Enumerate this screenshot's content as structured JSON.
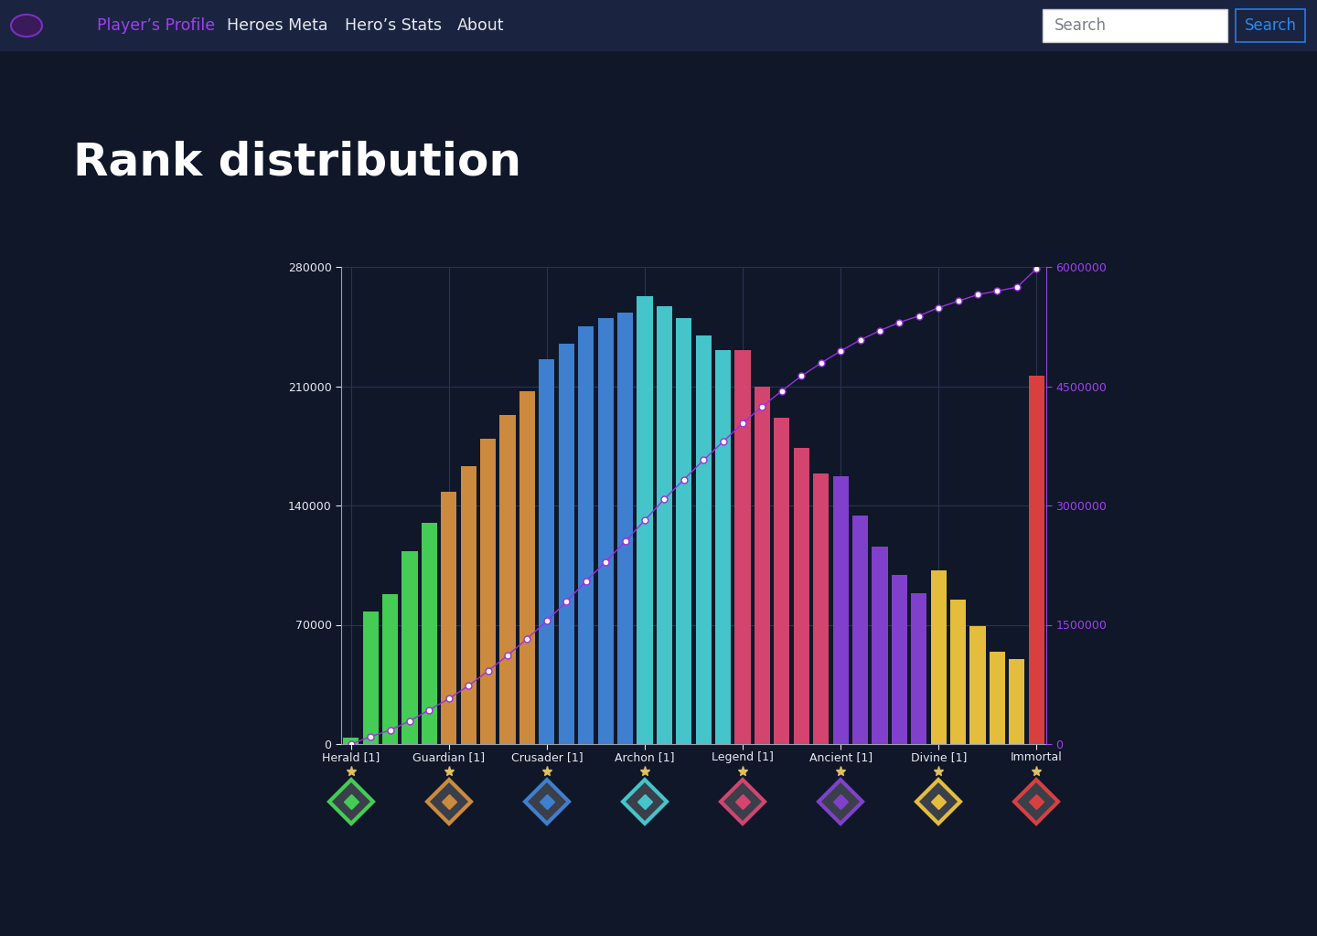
{
  "page": {
    "nav": [
      {
        "text": "Player’s Profile",
        "active": true
      },
      {
        "text": "Heroes Meta",
        "active": false
      },
      {
        "text": "Hero’s Stats",
        "active": false
      },
      {
        "text": "About",
        "active": false
      }
    ],
    "search": {
      "placeholder": "Search",
      "button": "Search"
    },
    "heading": "Rank distribution"
  },
  "chart_data": {
    "type": "bar",
    "categories": [
      "Herald [1]",
      null,
      null,
      null,
      null,
      "Guardian [1]",
      null,
      null,
      null,
      null,
      "Crusader [1]",
      null,
      null,
      null,
      null,
      "Archon [1]",
      null,
      null,
      null,
      null,
      "Legend [1]",
      null,
      null,
      null,
      null,
      "Ancient [1]",
      null,
      null,
      null,
      null,
      "Divine [1]",
      null,
      null,
      null,
      null,
      "Immortal"
    ],
    "series": [
      {
        "type": "bar",
        "values": [
          4000,
          78000,
          88000,
          113000,
          130000,
          148000,
          163000,
          179000,
          193000,
          207000,
          226000,
          235000,
          245000,
          250000,
          253000,
          263000,
          257000,
          250000,
          240000,
          231000,
          231000,
          210000,
          191500,
          174000,
          159000,
          157000,
          134000,
          116000,
          99000,
          88500,
          102000,
          85000,
          69000,
          54000,
          50000,
          216000
        ],
        "colors": [
          "#44cc55",
          "#44cc55",
          "#44cc55",
          "#44cc55",
          "#44cc55",
          "#cc8a3e",
          "#cc8a3e",
          "#cc8a3e",
          "#cc8a3e",
          "#cc8a3e",
          "#3f7fcf",
          "#3f7fcf",
          "#3f7fcf",
          "#3f7fcf",
          "#3f7fcf",
          "#45c4c9",
          "#45c4c9",
          "#45c4c9",
          "#45c4c9",
          "#45c4c9",
          "#d3446f",
          "#d3446f",
          "#d3446f",
          "#d3446f",
          "#d3446f",
          "#8040cc",
          "#8040cc",
          "#8040cc",
          "#8040cc",
          "#8040cc",
          "#e5bd3d",
          "#e5bd3d",
          "#e5bd3d",
          "#e5bd3d",
          "#e5bd3d",
          "#d84040"
        ]
      },
      {
        "type": "line",
        "axis": "y2",
        "color": "#9b30e0",
        "marker": "circle",
        "line_style": "solid",
        "values": [
          0,
          93000,
          174000,
          291000,
          430000,
          570000,
          733000,
          919000,
          1116000,
          1326000,
          1547000,
          1791000,
          2047000,
          2291000,
          2547000,
          2814000,
          3081000,
          3326000,
          3570000,
          3802000,
          4035000,
          4244000,
          4442000,
          4628000,
          4791000,
          4942000,
          5081000,
          5198000,
          5302000,
          5384000,
          5488000,
          5570000,
          5651000,
          5698000,
          5744000,
          5977000
        ]
      }
    ],
    "ylim": [
      0,
      280000
    ],
    "yticks": [
      0,
      70000,
      140000,
      210000,
      280000
    ],
    "y2lim": [
      0,
      6000000
    ],
    "y2ticks": [
      0,
      1500000,
      3000000,
      4500000,
      6000000
    ],
    "grid": true
  }
}
